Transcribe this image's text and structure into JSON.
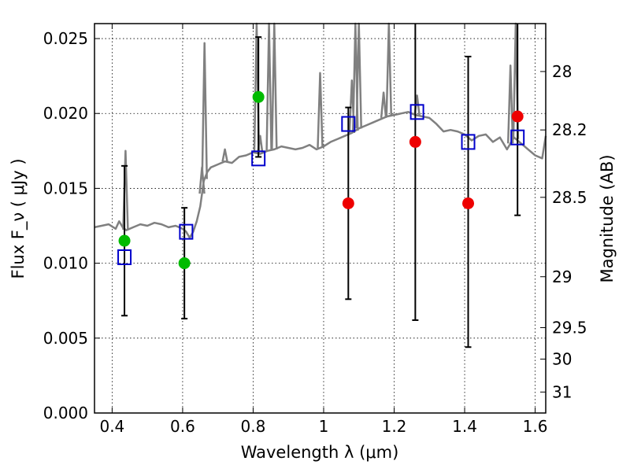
{
  "chart_data": {
    "type": "scatter",
    "title": "",
    "xlabel": "Wavelength  λ (μm)",
    "ylabel": "Flux  F_ν  ( μJy )",
    "y2label": "Magnitude (AB)",
    "xlim": [
      0.35,
      1.63
    ],
    "ylim": [
      0.0,
      0.026
    ],
    "grid": true,
    "x_ticks": [
      0.4,
      0.6,
      0.8,
      1.0,
      1.2,
      1.4,
      1.6
    ],
    "x_tick_labels": [
      "0.4",
      "0.6",
      "0.8",
      "1",
      "1.2",
      "1.4",
      "1.6"
    ],
    "y_ticks": [
      0.0,
      0.005,
      0.01,
      0.015,
      0.02,
      0.025
    ],
    "y_tick_labels": [
      "0.000",
      "0.005",
      "0.010",
      "0.015",
      "0.020",
      "0.025"
    ],
    "y2_ticks": [
      {
        "label": "28",
        "flux": 0.0228
      },
      {
        "label": "28.2",
        "flux": 0.0189
      },
      {
        "label": "28.5",
        "flux": 0.0144
      },
      {
        "label": "29",
        "flux": 0.0091
      },
      {
        "label": "29.5",
        "flux": 0.0057
      },
      {
        "label": "30",
        "flux": 0.0036
      },
      {
        "label": "31",
        "flux": 0.0014
      }
    ],
    "series": [
      {
        "type": "line",
        "color": "#808080",
        "x": [
          0.35,
          0.37,
          0.39,
          0.41,
          0.42,
          0.43,
          0.44,
          0.46,
          0.48,
          0.5,
          0.52,
          0.54,
          0.56,
          0.58,
          0.6,
          0.61,
          0.62,
          0.63,
          0.64,
          0.65,
          0.66,
          0.67,
          0.68,
          0.7,
          0.72,
          0.74,
          0.76,
          0.78,
          0.8,
          0.82,
          0.84,
          0.86,
          0.88,
          0.9,
          0.92,
          0.94,
          0.96,
          0.98,
          1.0,
          1.02,
          1.04,
          1.06,
          1.08,
          1.1,
          1.12,
          1.14,
          1.16,
          1.18,
          1.2,
          1.22,
          1.24,
          1.26,
          1.28,
          1.3,
          1.32,
          1.34,
          1.36,
          1.38,
          1.4,
          1.42,
          1.44,
          1.46,
          1.48,
          1.5,
          1.52,
          1.54,
          1.56,
          1.58,
          1.6,
          1.62,
          1.63
        ],
        "y": [
          0.0124,
          0.0125,
          0.0126,
          0.0123,
          0.0128,
          0.0124,
          0.0122,
          0.0124,
          0.0126,
          0.0125,
          0.0127,
          0.0126,
          0.0124,
          0.0125,
          0.0123,
          0.0121,
          0.0117,
          0.0121,
          0.0128,
          0.0138,
          0.0155,
          0.0161,
          0.0164,
          0.0166,
          0.0168,
          0.0167,
          0.0171,
          0.0172,
          0.0174,
          0.0173,
          0.0175,
          0.0176,
          0.0178,
          0.0177,
          0.0176,
          0.0177,
          0.0179,
          0.0176,
          0.0178,
          0.0181,
          0.0183,
          0.0185,
          0.0187,
          0.019,
          0.0192,
          0.0194,
          0.0196,
          0.0198,
          0.0199,
          0.02,
          0.0201,
          0.0199,
          0.0198,
          0.0197,
          0.0193,
          0.0188,
          0.0189,
          0.0188,
          0.0186,
          0.0182,
          0.0185,
          0.0186,
          0.0181,
          0.0184,
          0.0176,
          0.0184,
          0.018,
          0.0176,
          0.0172,
          0.017,
          0.0185
        ]
      },
      {
        "type": "spikes",
        "color": "#808080",
        "points": [
          {
            "x": 0.438,
            "y": 0.0175
          },
          {
            "x": 0.662,
            "y": 0.0247
          },
          {
            "x": 0.655,
            "y": 0.0164
          },
          {
            "x": 0.72,
            "y": 0.0176
          },
          {
            "x": 0.81,
            "y": 0.026
          },
          {
            "x": 0.82,
            "y": 0.0185
          },
          {
            "x": 0.845,
            "y": 0.026
          },
          {
            "x": 0.86,
            "y": 0.026
          },
          {
            "x": 0.99,
            "y": 0.0227
          },
          {
            "x": 1.08,
            "y": 0.0222
          },
          {
            "x": 1.09,
            "y": 0.026
          },
          {
            "x": 1.1,
            "y": 0.026
          },
          {
            "x": 1.17,
            "y": 0.0214
          },
          {
            "x": 1.185,
            "y": 0.026
          },
          {
            "x": 1.265,
            "y": 0.0212
          },
          {
            "x": 1.53,
            "y": 0.0232
          },
          {
            "x": 1.545,
            "y": 0.026
          }
        ]
      },
      {
        "type": "errorbar",
        "color": "#000000",
        "points": [
          {
            "x": 0.435,
            "low": 0.0065,
            "high": 0.0165
          },
          {
            "x": 0.605,
            "low": 0.0063,
            "high": 0.0137
          },
          {
            "x": 0.815,
            "low": 0.0171,
            "high": 0.0251
          },
          {
            "x": 1.07,
            "low": 0.0076,
            "high": 0.0204
          },
          {
            "x": 1.26,
            "low": 0.0062,
            "high": 0.026
          },
          {
            "x": 1.41,
            "low": 0.0044,
            "high": 0.0238
          },
          {
            "x": 1.55,
            "low": 0.0132,
            "high": 0.026
          }
        ]
      },
      {
        "type": "scatter",
        "marker": "square-open",
        "color": "#0000cc",
        "x": [
          0.435,
          0.61,
          0.815,
          1.07,
          1.265,
          1.41,
          1.55
        ],
        "y": [
          0.0104,
          0.0121,
          0.017,
          0.0193,
          0.0201,
          0.0181,
          0.0184
        ]
      },
      {
        "type": "scatter",
        "marker": "circle",
        "color": "#00bb00",
        "x": [
          0.435,
          0.605,
          0.815
        ],
        "y": [
          0.0115,
          0.01,
          0.0211
        ]
      },
      {
        "type": "scatter",
        "marker": "circle",
        "color": "#ee0000",
        "x": [
          1.07,
          1.26,
          1.41,
          1.55
        ],
        "y": [
          0.014,
          0.0181,
          0.014,
          0.0198
        ]
      }
    ]
  }
}
